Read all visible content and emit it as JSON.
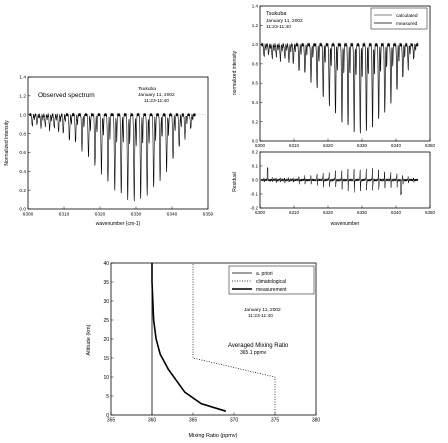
{
  "chart_data": [
    {
      "type": "line",
      "panel": "observed",
      "label": "Observed spectrum",
      "annotation": [
        "Tsukuba",
        "January 11, 2002",
        "11:23-11:40"
      ],
      "xlabel": "wavenumber (cm-1)",
      "ylabel": "Normalized Intensity",
      "xlim": [
        6300,
        6350
      ],
      "ylim": [
        0,
        1.4
      ],
      "xticks": [
        "6300",
        "6310",
        "6320",
        "6330",
        "6340",
        "6350"
      ],
      "yticks": [
        "0.0",
        "0.2",
        "0.4",
        "0.6",
        "0.8",
        "1.0",
        "1.2",
        "1.4"
      ],
      "baseline": 1.0,
      "absorption_lines": [
        {
          "x": 6301.2,
          "depth": 0.12
        },
        {
          "x": 6302.5,
          "depth": 0.1
        },
        {
          "x": 6303.6,
          "depth": 0.14
        },
        {
          "x": 6304.8,
          "depth": 0.12
        },
        {
          "x": 6306.0,
          "depth": 0.16
        },
        {
          "x": 6307.3,
          "depth": 0.14
        },
        {
          "x": 6308.5,
          "depth": 0.18
        },
        {
          "x": 6309.8,
          "depth": 0.2
        },
        {
          "x": 6311.5,
          "depth": 0.28
        },
        {
          "x": 6313.2,
          "depth": 0.3
        },
        {
          "x": 6315.0,
          "depth": 0.38
        },
        {
          "x": 6316.8,
          "depth": 0.45
        },
        {
          "x": 6318.6,
          "depth": 0.55
        },
        {
          "x": 6320.4,
          "depth": 0.62
        },
        {
          "x": 6322.2,
          "depth": 0.72
        },
        {
          "x": 6324.1,
          "depth": 0.8
        },
        {
          "x": 6325.9,
          "depth": 0.85
        },
        {
          "x": 6327.7,
          "depth": 0.9
        },
        {
          "x": 6329.5,
          "depth": 0.92
        },
        {
          "x": 6331.3,
          "depth": 0.9
        },
        {
          "x": 6333.1,
          "depth": 0.85
        },
        {
          "x": 6334.9,
          "depth": 0.78
        },
        {
          "x": 6336.7,
          "depth": 0.7
        },
        {
          "x": 6338.5,
          "depth": 0.6
        },
        {
          "x": 6340.3,
          "depth": 0.48
        },
        {
          "x": 6342.0,
          "depth": 0.35
        },
        {
          "x": 6343.6,
          "depth": 0.25
        },
        {
          "x": 6345.2,
          "depth": 0.15
        }
      ]
    },
    {
      "type": "line",
      "panel": "fit",
      "annotation": [
        "Tsukuba",
        "January 11, 2002",
        "11:23-11:40"
      ],
      "ylabel": "normalized intensity",
      "xlim": [
        6300,
        6350
      ],
      "ylim": [
        0,
        1.4
      ],
      "xticks": [
        "6300",
        "6310",
        "6320",
        "6330",
        "6340",
        "6350"
      ],
      "yticks": [
        "0.0",
        "0.2",
        "0.4",
        "0.6",
        "0.8",
        "1.0",
        "1.2",
        "1.4"
      ],
      "baseline": 1.0,
      "series": [
        {
          "name": "calculated",
          "color": "#999999"
        },
        {
          "name": "measured",
          "color": "#000000"
        }
      ]
    },
    {
      "type": "line",
      "panel": "residual",
      "xlabel": "wavenumber",
      "ylabel": "Residual",
      "xlim": [
        6300,
        6350
      ],
      "ylim": [
        -0.2,
        0.2
      ],
      "xticks": [
        "6300",
        "6310",
        "6320",
        "6330",
        "6340",
        "6350"
      ],
      "yticks": [
        "-0.2",
        "-0.1",
        "0.0",
        "0.1",
        "0.2"
      ]
    },
    {
      "type": "line",
      "panel": "profile",
      "annotation": [
        "January 11, 2002",
        "11:23-11:40"
      ],
      "label_lines": [
        "Averaged Mixing Ratio",
        "365.1 ppmv"
      ],
      "xlabel": "Mixing Ratio (ppmv)",
      "ylabel": "Altitude (km)",
      "xlim": [
        355,
        380
      ],
      "ylim": [
        0,
        40
      ],
      "xticks": [
        "355",
        "360",
        "365",
        "370",
        "375",
        "380"
      ],
      "yticks": [
        "0",
        "5",
        "10",
        "15",
        "20",
        "25",
        "30",
        "35",
        "40"
      ],
      "series": [
        {
          "name": "a. priori",
          "style": "solid",
          "points": [
            [
              360,
              0
            ],
            [
              360,
              40
            ]
          ]
        },
        {
          "name": "climatological",
          "style": "dotted",
          "points": [
            [
              375,
              0
            ],
            [
              375,
              10
            ],
            [
              365,
              15
            ],
            [
              365,
              40
            ]
          ]
        },
        {
          "name": "measurement",
          "style": "bold",
          "points": [
            [
              369,
              1
            ],
            [
              366,
              3
            ],
            [
              364,
              6
            ],
            [
              363,
              9
            ],
            [
              362,
              12
            ],
            [
              361,
              16
            ],
            [
              360.5,
              20
            ],
            [
              360.2,
              25
            ],
            [
              360.1,
              30
            ],
            [
              360,
              35
            ],
            [
              360,
              40
            ]
          ]
        }
      ]
    }
  ]
}
